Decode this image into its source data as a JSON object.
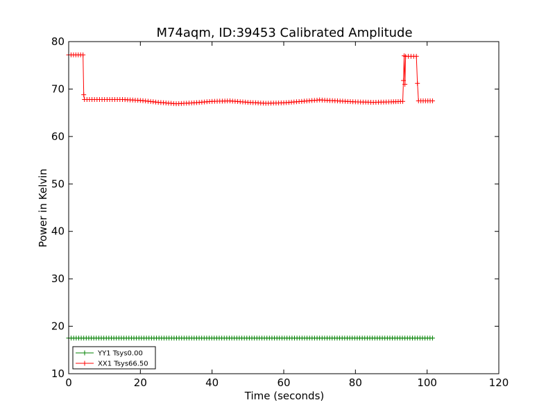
{
  "chart_data": {
    "type": "line",
    "title": "M74aqm, ID:39453 Calibrated Amplitude",
    "xlabel": "Time (seconds)",
    "ylabel": "Power in Kelvin",
    "xlim": [
      0,
      120
    ],
    "ylim": [
      10,
      80
    ],
    "xticks": [
      0,
      20,
      40,
      60,
      80,
      100,
      120
    ],
    "yticks": [
      10,
      20,
      30,
      40,
      50,
      60,
      70,
      80
    ],
    "grid": false,
    "legend_position": "lower-left",
    "marker": "+",
    "series": [
      {
        "name": "YY1 Tsys0.00",
        "color": "#008000",
        "points": [
          [
            0,
            17.5
          ],
          [
            101.5,
            17.5
          ]
        ]
      },
      {
        "name": "XX1 Tsys66.50",
        "color": "#ff0000",
        "points": [
          [
            0,
            77.2
          ],
          [
            4.0,
            77.2
          ],
          [
            4.2,
            68.8
          ],
          [
            4.4,
            67.8
          ],
          [
            10,
            67.8
          ],
          [
            15,
            67.8
          ],
          [
            20,
            67.6
          ],
          [
            25,
            67.2
          ],
          [
            30,
            66.9
          ],
          [
            35,
            67.1
          ],
          [
            40,
            67.4
          ],
          [
            45,
            67.5
          ],
          [
            50,
            67.2
          ],
          [
            55,
            67.0
          ],
          [
            60,
            67.1
          ],
          [
            65,
            67.4
          ],
          [
            70,
            67.7
          ],
          [
            75,
            67.5
          ],
          [
            80,
            67.3
          ],
          [
            85,
            67.2
          ],
          [
            90,
            67.3
          ],
          [
            93.2,
            67.4
          ],
          [
            93.4,
            71.8
          ],
          [
            93.6,
            77.0
          ],
          [
            93.8,
            71.0
          ],
          [
            94.0,
            76.9
          ],
          [
            97.0,
            76.9
          ],
          [
            97.3,
            71.2
          ],
          [
            97.6,
            67.5
          ],
          [
            101.5,
            67.5
          ]
        ]
      }
    ]
  }
}
